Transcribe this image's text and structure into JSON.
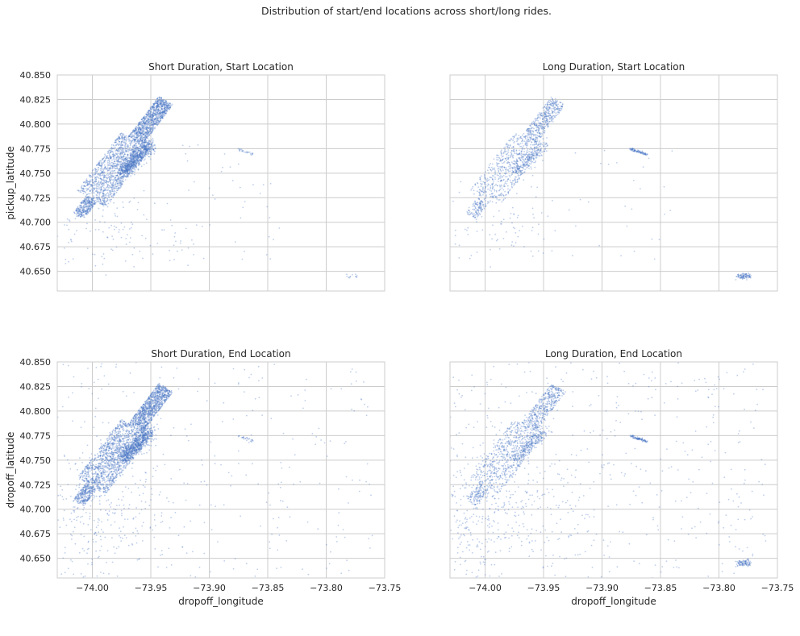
{
  "figure": {
    "suptitle": "Distribution of start/end locations across short/long rides."
  },
  "colors": {
    "point": "#4472c4",
    "grid": "#cccccc",
    "text": "#262626"
  },
  "chart_data": [
    {
      "type": "scatter",
      "title": "Short Duration, Start Location",
      "xlabel": "",
      "ylabel": "pickup_latitude",
      "xlim": [
        -74.03,
        -73.75
      ],
      "ylim": [
        40.63,
        40.85
      ],
      "xticks": [
        -74.0,
        -73.95,
        -73.9,
        -73.85,
        -73.8,
        -73.75
      ],
      "yticks": [
        40.65,
        40.675,
        40.7,
        40.725,
        40.75,
        40.775,
        40.8,
        40.825,
        40.85
      ],
      "show_xticklabels": false,
      "show_yticklabels": true,
      "grid": true,
      "point_density": "high",
      "clusters": [
        "manhattan-dense",
        "laguardia-small",
        "jfk-small",
        "brooklyn-sparse",
        "queens-sparse"
      ]
    },
    {
      "type": "scatter",
      "title": "Long Duration, Start Location",
      "xlabel": "",
      "ylabel": "",
      "xlim": [
        -74.03,
        -73.75
      ],
      "ylim": [
        40.63,
        40.85
      ],
      "xticks": [
        -74.0,
        -73.95,
        -73.9,
        -73.85,
        -73.8,
        -73.75
      ],
      "yticks": [
        40.65,
        40.675,
        40.7,
        40.725,
        40.75,
        40.775,
        40.8,
        40.825,
        40.85
      ],
      "show_xticklabels": false,
      "show_yticklabels": false,
      "grid": true,
      "point_density": "medium",
      "clusters": [
        "manhattan-medium",
        "laguardia-strong",
        "jfk-strong",
        "brooklyn-sparse",
        "queens-sparse"
      ]
    },
    {
      "type": "scatter",
      "title": "Short Duration, End Location",
      "xlabel": "dropoff_longitude",
      "ylabel": "dropoff_latitude",
      "xlim": [
        -74.03,
        -73.75
      ],
      "ylim": [
        40.63,
        40.85
      ],
      "xticks": [
        -74.0,
        -73.95,
        -73.9,
        -73.85,
        -73.8,
        -73.75
      ],
      "yticks": [
        40.65,
        40.675,
        40.7,
        40.725,
        40.75,
        40.775,
        40.8,
        40.825,
        40.85
      ],
      "show_xticklabels": true,
      "show_yticklabels": true,
      "grid": true,
      "point_density": "high",
      "clusters": [
        "manhattan-dense",
        "laguardia-small",
        "brooklyn-wide",
        "queens-wide"
      ]
    },
    {
      "type": "scatter",
      "title": "Long Duration, End Location",
      "xlabel": "dropoff_longitude",
      "ylabel": "",
      "xlim": [
        -74.03,
        -73.75
      ],
      "ylim": [
        40.63,
        40.85
      ],
      "xticks": [
        -74.0,
        -73.95,
        -73.9,
        -73.85,
        -73.8,
        -73.75
      ],
      "yticks": [
        40.65,
        40.675,
        40.7,
        40.725,
        40.75,
        40.775,
        40.8,
        40.825,
        40.85
      ],
      "show_xticklabels": true,
      "show_yticklabels": false,
      "grid": true,
      "point_density": "medium",
      "clusters": [
        "manhattan-medium",
        "laguardia-strong",
        "jfk-strong",
        "brooklyn-wide",
        "queens-wide"
      ]
    }
  ]
}
